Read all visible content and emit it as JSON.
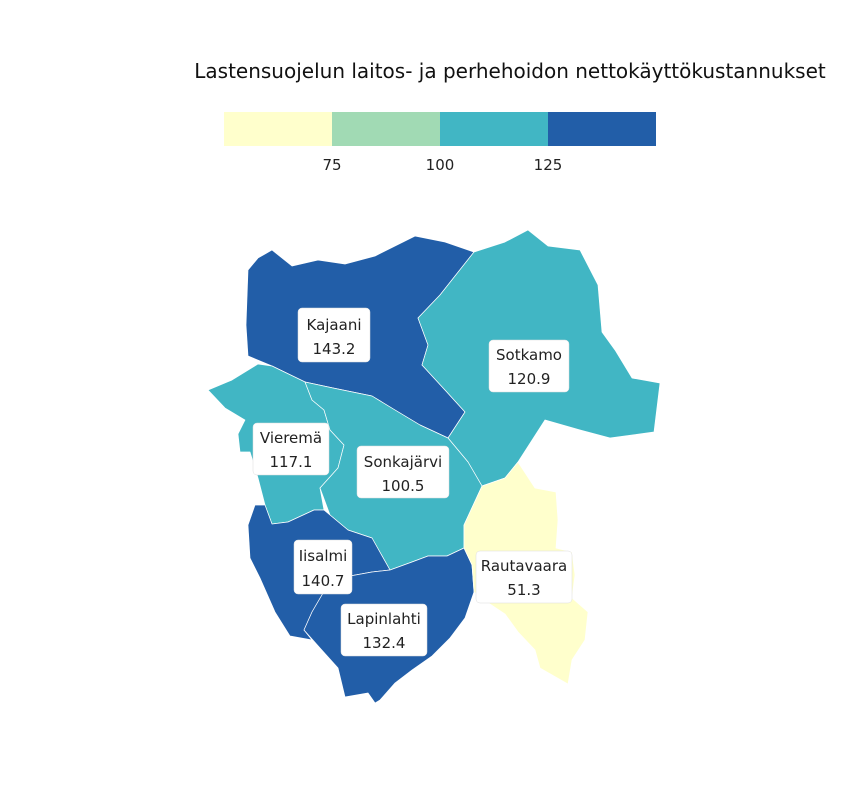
{
  "title": "Lastensuojelun laitos- ja perhehoidon nettokäyttökustannukset",
  "legend": {
    "colors": [
      "#ffffcc",
      "#a1dab4",
      "#41b6c4",
      "#225ea8"
    ],
    "ticks": [
      "75",
      "100",
      "125"
    ]
  },
  "regions": [
    {
      "id": "kajaani",
      "name": "Kajaani",
      "value": "143.2",
      "color": "#225ea8"
    },
    {
      "id": "sotkamo",
      "name": "Sotkamo",
      "value": "120.9",
      "color": "#41b6c4"
    },
    {
      "id": "vierema",
      "name": "Vieremä",
      "value": "117.1",
      "color": "#41b6c4"
    },
    {
      "id": "sonkajarvi",
      "name": "Sonkajärvi",
      "value": "100.5",
      "color": "#41b6c4"
    },
    {
      "id": "iisalmi",
      "name": "Iisalmi",
      "value": "140.7",
      "color": "#225ea8"
    },
    {
      "id": "lapinlahti",
      "name": "Lapinlahti",
      "value": "132.4",
      "color": "#225ea8"
    },
    {
      "id": "rautavaara",
      "name": "Rautavaara",
      "value": "51.3",
      "color": "#ffffcc"
    }
  ]
}
